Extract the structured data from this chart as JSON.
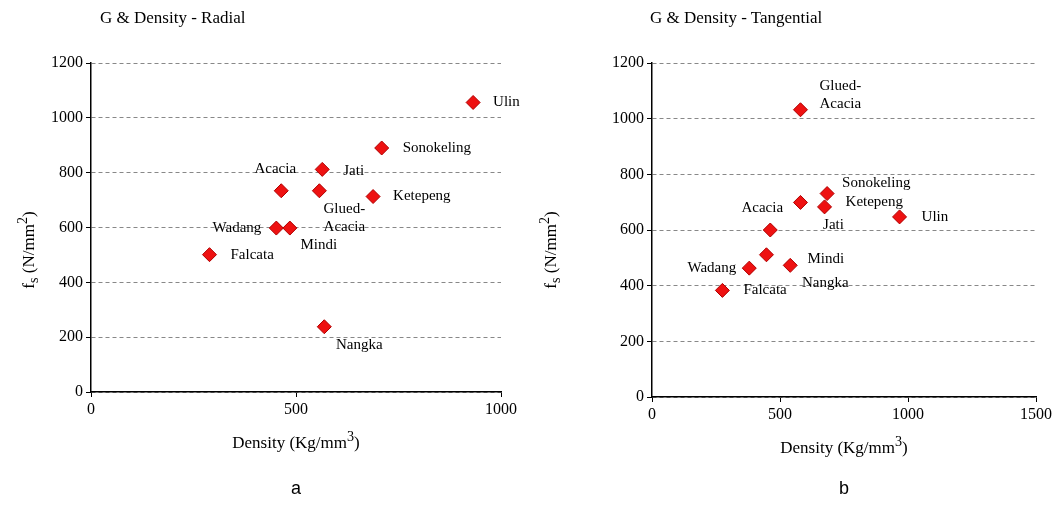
{
  "chart_data": [
    {
      "type": "scatter",
      "title": "G & Density - Radial",
      "xlabel": "Density (Kg/mm$^{3}$)",
      "ylabel": "f$_{s}$ (N/mm$^{2}$)",
      "x": [
        932,
        709,
        564,
        464,
        557,
        688,
        452,
        485,
        289,
        569
      ],
      "values": [
        1056,
        890,
        812,
        734,
        734,
        713,
        598,
        598,
        501,
        238
      ],
      "color": "#ee1111",
      "marker": "diamond",
      "grid": "y",
      "legend": false,
      "xlim": [
        0,
        1000
      ],
      "xticks": [
        0,
        500,
        1000
      ],
      "ylim": [
        0,
        1200
      ],
      "yticks": [
        0,
        200,
        400,
        600,
        800,
        1000,
        1200
      ],
      "annotations": [
        {
          "text": "Ulin",
          "x": 932,
          "y": 1056
        },
        {
          "text": "Sonokeling",
          "x": 709,
          "y": 890
        },
        {
          "text": "Jati",
          "x": 564,
          "y": 812
        },
        {
          "text": "Acacia",
          "x": 464,
          "y": 734
        },
        {
          "text": "Glued-Acacia",
          "x": 557,
          "y": 734
        },
        {
          "text": "Ketepeng",
          "x": 688,
          "y": 713
        },
        {
          "text": "Wadang",
          "x": 452,
          "y": 598
        },
        {
          "text": "Mindi",
          "x": 485,
          "y": 598
        },
        {
          "text": "Falcata",
          "x": 289,
          "y": 501
        },
        {
          "text": "Nangka",
          "x": 569,
          "y": 238
        },
        "a"
      ]
    },
    {
      "type": "scatter",
      "title": "G & Density - Tangential",
      "xlabel": "Density (Kg/mm$^{3}$)",
      "ylabel": "f$_{s}$ (N/mm$^{2}$)",
      "x": [
        580,
        684,
        674,
        580,
        967,
        462,
        447,
        380,
        540,
        275
      ],
      "values": [
        1032,
        731,
        683,
        699,
        647,
        600,
        511,
        463,
        473,
        383
      ],
      "color": "#ee1111",
      "marker": "diamond",
      "grid": "y",
      "legend": false,
      "xlim": [
        0,
        1500
      ],
      "xticks": [
        0,
        500,
        1000,
        1500
      ],
      "ylim": [
        0,
        1200
      ],
      "yticks": [
        0,
        200,
        400,
        600,
        800,
        1000,
        1200
      ],
      "annotations": [
        {
          "text": "Glued-Acacia",
          "x": 580,
          "y": 1032
        },
        {
          "text": "Sonokeling",
          "x": 684,
          "y": 731
        },
        {
          "text": "Ketepeng",
          "x": 674,
          "y": 683
        },
        {
          "text": "Jati",
          "x": 580,
          "y": 699
        },
        {
          "text": "Ulin",
          "x": 967,
          "y": 647
        },
        {
          "text": "Acacia",
          "x": 462,
          "y": 600
        },
        {
          "text": "Mindi",
          "x": 447,
          "y": 511
        },
        {
          "text": "Wadang",
          "x": 380,
          "y": 463
        },
        {
          "text": "Nangka",
          "x": 540,
          "y": 473
        },
        {
          "text": "Falcata",
          "x": 275,
          "y": 383
        },
        "b"
      ]
    }
  ]
}
